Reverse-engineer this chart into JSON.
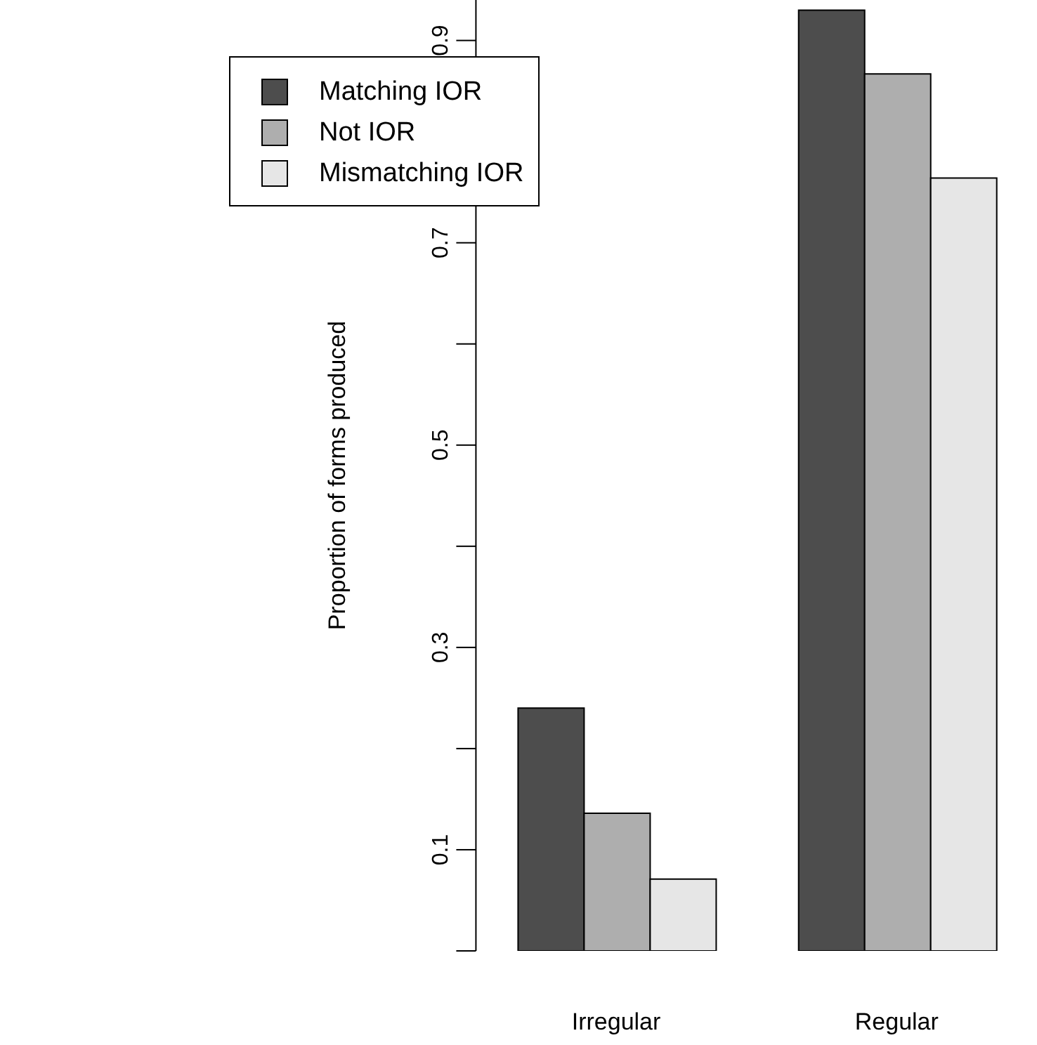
{
  "chart_data": {
    "type": "bar",
    "ylabel": "Proportion of forms produced",
    "categories": [
      "Irregular",
      "Regular"
    ],
    "series": [
      {
        "name": "Matching IOR",
        "color": "#4d4d4d",
        "values": [
          0.24,
          0.93
        ]
      },
      {
        "name": "Not IOR",
        "color": "#aeaeae",
        "values": [
          0.136,
          0.867
        ]
      },
      {
        "name": "Mismatching IOR",
        "color": "#e6e6e6",
        "values": [
          0.071,
          0.764
        ]
      }
    ],
    "ylim": [
      0,
      0.94
    ],
    "yticks": [
      {
        "value": 0,
        "label": null
      },
      0.1,
      {
        "value": 0.2,
        "label": null
      },
      0.3,
      {
        "value": 0.4,
        "label": null
      },
      0.5,
      {
        "value": 0.6,
        "label": null
      },
      0.7,
      {
        "value": 0.8,
        "label": null
      },
      0.9
    ],
    "grid": false,
    "legend": "top left"
  }
}
